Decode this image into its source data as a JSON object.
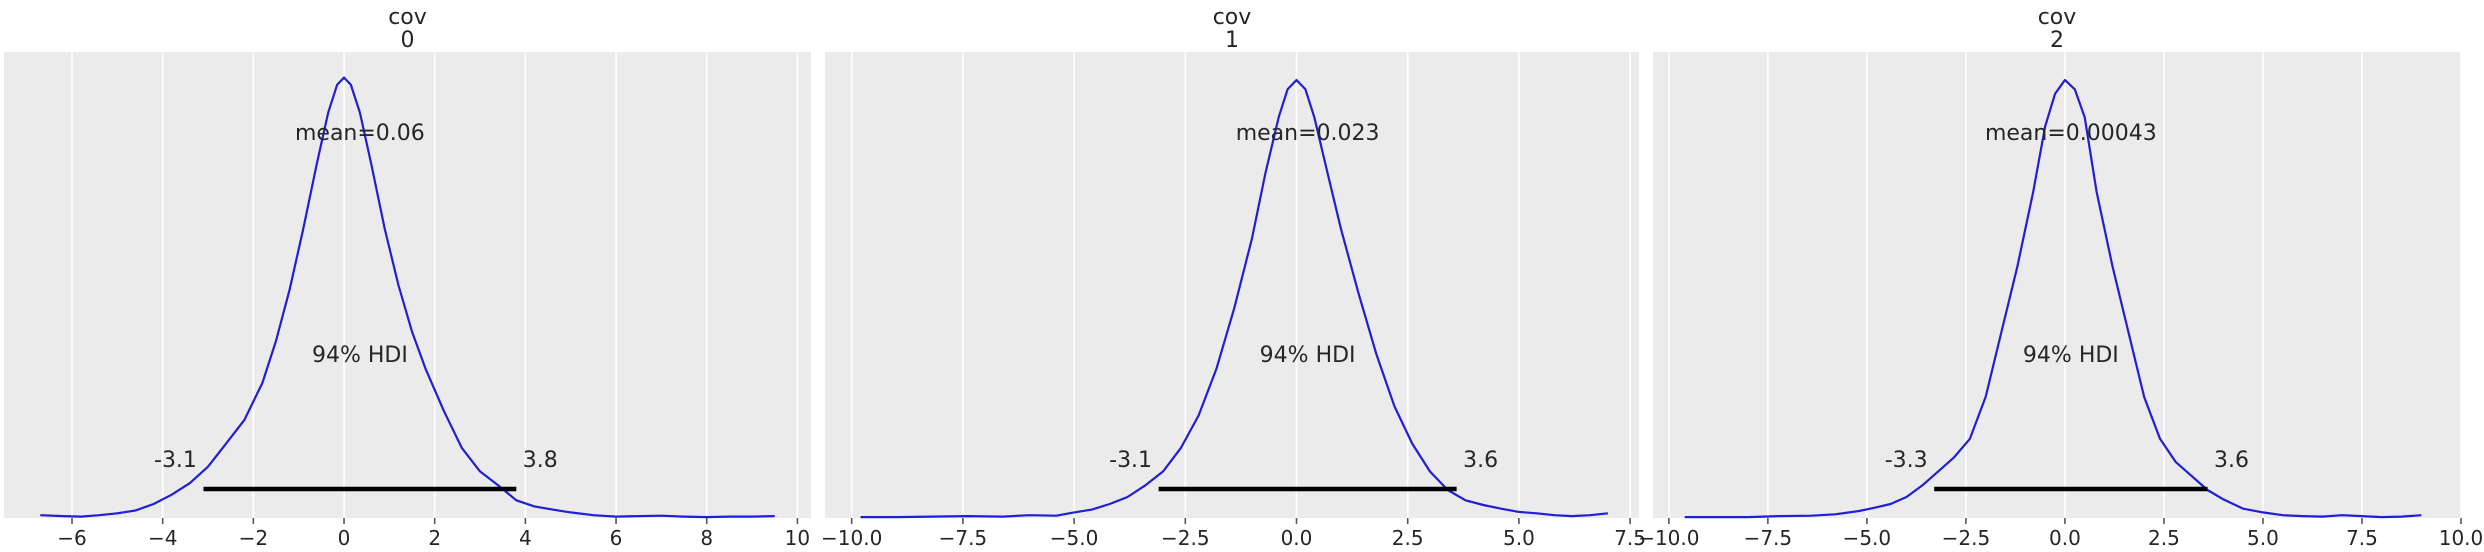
{
  "chart_data": [
    {
      "type": "line",
      "title_line1": "cov",
      "title_line2": "0",
      "xlim": [
        -7.5,
        10.3
      ],
      "xticks": [
        -6,
        -4,
        -2,
        0,
        2,
        4,
        6,
        8,
        10
      ],
      "tick_labels": [
        "−6",
        "−4",
        "−2",
        "0",
        "2",
        "4",
        "6",
        "8",
        "10"
      ],
      "mean_label": "mean=0.06",
      "hdi_label": "94% HDI",
      "hdi": [
        -3.1,
        3.8
      ],
      "hdi_low_label": "-3.1",
      "hdi_high_label": "3.8",
      "kde": {
        "x": [
          -6.7,
          -6.2,
          -5.8,
          -5.4,
          -5.0,
          -4.6,
          -4.2,
          -3.8,
          -3.4,
          -3.0,
          -2.6,
          -2.2,
          -1.8,
          -1.5,
          -1.2,
          -0.9,
          -0.6,
          -0.35,
          -0.15,
          0.0,
          0.15,
          0.35,
          0.6,
          0.9,
          1.2,
          1.5,
          1.8,
          2.2,
          2.6,
          3.0,
          3.4,
          3.8,
          4.2,
          4.6,
          5.0,
          5.5,
          6.0,
          6.5,
          7.0,
          7.5,
          8.0,
          8.5,
          9.0,
          9.5
        ],
        "y": [
          0.006,
          0.004,
          0.003,
          0.006,
          0.01,
          0.016,
          0.03,
          0.05,
          0.075,
          0.11,
          0.16,
          0.21,
          0.29,
          0.38,
          0.49,
          0.62,
          0.76,
          0.87,
          0.93,
          0.945,
          0.93,
          0.87,
          0.76,
          0.62,
          0.5,
          0.4,
          0.32,
          0.23,
          0.15,
          0.1,
          0.07,
          0.038,
          0.025,
          0.018,
          0.012,
          0.006,
          0.003,
          0.004,
          0.005,
          0.003,
          0.002,
          0.003,
          0.003,
          0.004
        ]
      }
    },
    {
      "type": "line",
      "title_line1": "cov",
      "title_line2": "1",
      "xlim": [
        -10.6,
        7.7
      ],
      "xticks": [
        -10,
        -7.5,
        -5,
        -2.5,
        0,
        2.5,
        5,
        7.5
      ],
      "tick_labels": [
        "−10.0",
        "−7.5",
        "−5.0",
        "−2.5",
        "0.0",
        "2.5",
        "5.0",
        "7.5"
      ],
      "mean_label": "mean=0.023",
      "hdi_label": "94% HDI",
      "hdi": [
        -3.1,
        3.6
      ],
      "hdi_low_label": "-3.1",
      "hdi_high_label": "3.6",
      "kde": {
        "x": [
          -9.8,
          -9.0,
          -8.2,
          -7.4,
          -6.6,
          -6.0,
          -5.4,
          -5.0,
          -4.6,
          -4.2,
          -3.8,
          -3.4,
          -3.0,
          -2.6,
          -2.2,
          -1.8,
          -1.4,
          -1.0,
          -0.7,
          -0.4,
          -0.2,
          0.0,
          0.2,
          0.4,
          0.7,
          1.0,
          1.4,
          1.8,
          2.2,
          2.6,
          3.0,
          3.4,
          3.8,
          4.2,
          4.6,
          5.0,
          5.4,
          5.8,
          6.2,
          6.6,
          7.0
        ],
        "y": [
          0.002,
          0.002,
          0.003,
          0.004,
          0.003,
          0.006,
          0.005,
          0.012,
          0.018,
          0.03,
          0.045,
          0.07,
          0.1,
          0.15,
          0.22,
          0.32,
          0.45,
          0.6,
          0.74,
          0.86,
          0.92,
          0.94,
          0.92,
          0.86,
          0.74,
          0.62,
          0.48,
          0.35,
          0.24,
          0.16,
          0.1,
          0.06,
          0.038,
          0.028,
          0.02,
          0.013,
          0.01,
          0.006,
          0.004,
          0.006,
          0.01
        ]
      }
    },
    {
      "type": "line",
      "title_line1": "cov",
      "title_line2": "2",
      "xlim": [
        -10.4,
        10.0
      ],
      "xticks": [
        -10,
        -7.5,
        -5,
        -2.5,
        0,
        2.5,
        5,
        7.5,
        10
      ],
      "tick_labels": [
        "−10.0",
        "−7.5",
        "−5.0",
        "−2.5",
        "0.0",
        "2.5",
        "5.0",
        "7.5",
        "10.0"
      ],
      "mean_label": "mean=0.00043",
      "hdi_label": "94% HDI",
      "hdi": [
        -3.3,
        3.6
      ],
      "hdi_low_label": "-3.3",
      "hdi_high_label": "3.6",
      "kde": {
        "x": [
          -9.6,
          -8.8,
          -8.0,
          -7.2,
          -6.4,
          -5.8,
          -5.2,
          -4.8,
          -4.4,
          -4.0,
          -3.6,
          -3.2,
          -2.8,
          -2.4,
          -2.0,
          -1.6,
          -1.2,
          -0.8,
          -0.5,
          -0.25,
          0.0,
          0.25,
          0.5,
          0.8,
          1.2,
          1.6,
          2.0,
          2.4,
          2.8,
          3.2,
          3.6,
          4.0,
          4.5,
          5.0,
          5.5,
          6.0,
          6.5,
          7.0,
          7.5,
          8.0,
          8.5,
          9.0
        ],
        "y": [
          0.002,
          0.002,
          0.002,
          0.004,
          0.005,
          0.008,
          0.015,
          0.022,
          0.03,
          0.045,
          0.07,
          0.1,
          0.13,
          0.17,
          0.26,
          0.4,
          0.54,
          0.7,
          0.84,
          0.91,
          0.94,
          0.92,
          0.86,
          0.7,
          0.54,
          0.4,
          0.26,
          0.17,
          0.12,
          0.09,
          0.06,
          0.04,
          0.02,
          0.012,
          0.006,
          0.004,
          0.003,
          0.006,
          0.004,
          0.002,
          0.003,
          0.006
        ]
      }
    }
  ]
}
